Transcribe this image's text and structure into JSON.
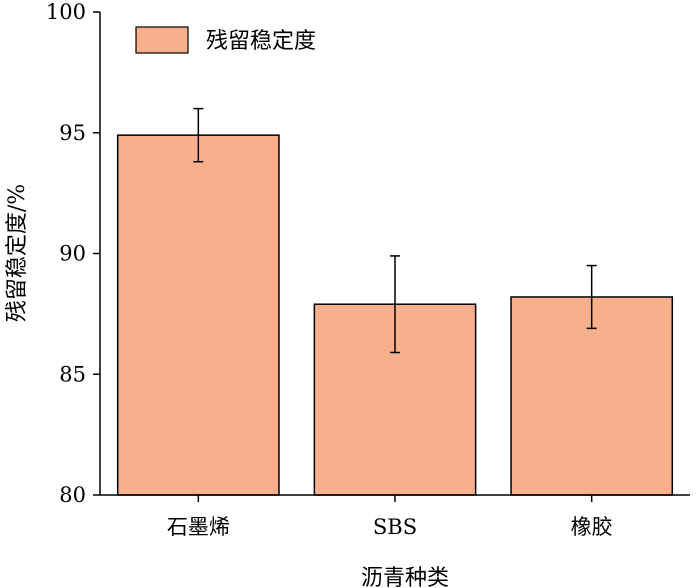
{
  "chart_data": {
    "type": "bar",
    "categories": [
      "石墨烯",
      "SBS",
      "橡胶"
    ],
    "series": [
      {
        "name": "残留稳定度",
        "values": [
          94.9,
          87.9,
          88.2
        ],
        "errors": [
          1.1,
          2.0,
          1.3
        ]
      }
    ],
    "xlabel": "沥青种类",
    "ylabel": "残留稳定度/%",
    "ylim": [
      80,
      100
    ],
    "yticks": [
      "80",
      "85",
      "90",
      "95",
      "100"
    ],
    "legend_position": "top-left",
    "grid": false,
    "colors": {
      "bar_fill": "#f8b08c",
      "bar_stroke": "#000000",
      "axis": "#000000",
      "error_bar": "#000000"
    }
  }
}
